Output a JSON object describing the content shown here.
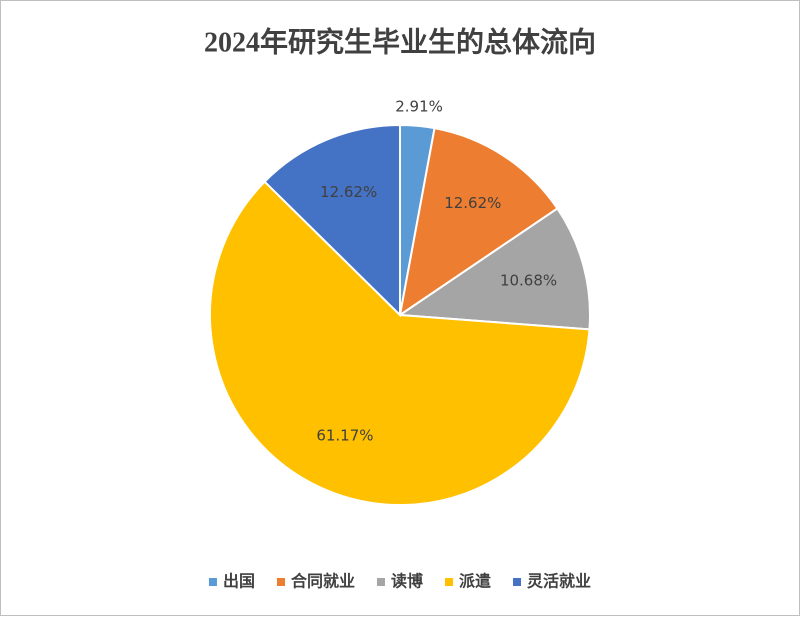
{
  "chart_data": {
    "type": "pie",
    "title": "2024年研究生毕业生的总体流向",
    "categories": [
      "出国",
      "合同就业",
      "读博",
      "派遣",
      "灵活就业"
    ],
    "values": [
      2.91,
      12.62,
      10.68,
      61.17,
      12.62
    ],
    "value_labels": [
      "2.91%",
      "12.62%",
      "10.68%",
      "61.17%",
      "12.62%"
    ],
    "colors": [
      "#5b9bd5",
      "#ed7d31",
      "#a5a5a5",
      "#ffc000",
      "#4472c4"
    ],
    "legend": "bottom"
  }
}
